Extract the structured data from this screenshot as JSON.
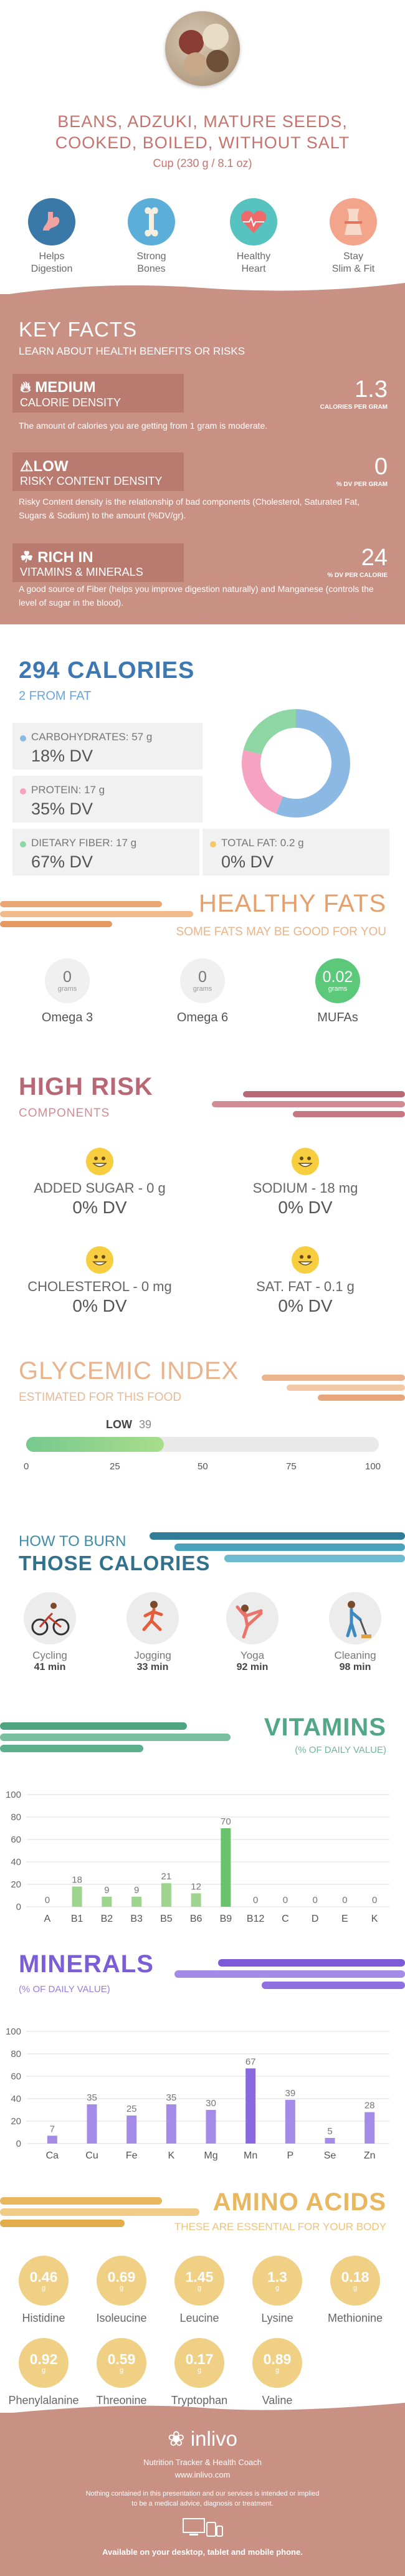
{
  "header": {
    "title_line1": "BEANS, ADZUKI, MATURE SEEDS,",
    "title_line2": "COOKED, BOILED, WITHOUT SALT",
    "serving": "Cup (230 g / 8.1 oz)",
    "benefits": [
      {
        "label1": "Helps",
        "label2": "Digestion",
        "icon": "stomach-icon",
        "color": "#3a78a8"
      },
      {
        "label1": "Strong",
        "label2": "Bones",
        "icon": "bone-icon",
        "color": "#5aaed8"
      },
      {
        "label1": "Healthy",
        "label2": "Heart",
        "icon": "heart-icon",
        "color": "#56c3c0"
      },
      {
        "label1": "Stay",
        "label2": "Slim & Fit",
        "icon": "waist-icon",
        "color": "#f3a58b"
      }
    ]
  },
  "key_facts": {
    "title": "KEY FACTS",
    "subtitle": "LEARN ABOUT HEALTH BENEFITS OR RISKS",
    "items": [
      {
        "level": "MEDIUM",
        "category": "CALORIE DENSITY",
        "icon": "flame-icon",
        "value": "1.3",
        "unit": "CALORIES PER GRAM",
        "desc": "The amount of calories you are getting from 1 gram is moderate."
      },
      {
        "level": "LOW",
        "category": "RISKY CONTENT DENSITY",
        "icon": "warning-icon",
        "value": "0",
        "unit": "% DV PER GRAM",
        "desc": "Risky Content density is the relationship of bad components (Cholesterol, Saturated Fat, Sugars & Sodium) to the amount (%DV/gr)."
      },
      {
        "level": "RICH IN",
        "category": "VITAMINS & MINERALS",
        "icon": "leaf-icon",
        "value": "24",
        "unit": "% DV PER CALORIE",
        "desc": "A good source of Fiber (helps you improve digestion naturally) and Manganese (controls the level of sugar in the blood)."
      }
    ]
  },
  "calories": {
    "title": "294 CALORIES",
    "subtitle": "2 FROM FAT",
    "nutrients": [
      {
        "label": "CARBOHYDRATES: 57 g",
        "dv": "18% DV",
        "color": "#8bb9e3",
        "share": 0.56
      },
      {
        "label": "PROTEIN: 17 g",
        "dv": "35% DV",
        "color": "#f5a3c0",
        "share": 0.23
      },
      {
        "label": "DIETARY FIBER: 17 g",
        "dv": "67% DV",
        "color": "#8fd6a5",
        "share": 0.21
      },
      {
        "label": "TOTAL FAT: 0.2 g",
        "dv": "0% DV",
        "color": "#f4c86a",
        "share": 0.0
      }
    ]
  },
  "healthy_fats": {
    "title": "HEALTHY FATS",
    "subtitle": "SOME FATS MAY BE GOOD FOR YOU",
    "items": [
      {
        "value": "0",
        "unit": "grams",
        "name": "Omega 3",
        "highlight": false
      },
      {
        "value": "0",
        "unit": "grams",
        "name": "Omega 6",
        "highlight": false
      },
      {
        "value": "0.02",
        "unit": "grams",
        "name": "MUFAs",
        "highlight": true
      }
    ]
  },
  "high_risk": {
    "title": "HIGH RISK",
    "subtitle": "COMPONENTS",
    "items": [
      {
        "label": "ADDED SUGAR - 0 g",
        "dv": "0% DV"
      },
      {
        "label": "SODIUM - 18 mg",
        "dv": "0% DV"
      },
      {
        "label": "CHOLESTEROL - 0 mg",
        "dv": "0% DV"
      },
      {
        "label": "SAT. FAT - 0.1 g",
        "dv": "0% DV"
      }
    ]
  },
  "glycemic": {
    "title": "GLYCEMIC INDEX",
    "subtitle": "ESTIMATED FOR THIS FOOD",
    "level": "LOW",
    "value": 39,
    "value_label": "39",
    "ticks": [
      "0",
      "25",
      "50",
      "75",
      "100"
    ]
  },
  "burn": {
    "line1": "HOW TO BURN",
    "line2": "THOSE CALORIES",
    "items": [
      {
        "activity": "Cycling",
        "minutes": "41 min",
        "icon": "cycling-icon"
      },
      {
        "activity": "Jogging",
        "minutes": "33 min",
        "icon": "jogging-icon"
      },
      {
        "activity": "Yoga",
        "minutes": "92 min",
        "icon": "yoga-icon"
      },
      {
        "activity": "Cleaning",
        "minutes": "98 min",
        "icon": "cleaning-icon"
      }
    ]
  },
  "vitamins": {
    "title": "VITAMINS",
    "subtitle": "(% OF DAILY VALUE)"
  },
  "minerals": {
    "title": "MINERALS",
    "subtitle": "(% OF DAILY VALUE)"
  },
  "chart_data": [
    {
      "type": "bar",
      "title": "VITAMINS",
      "subtitle": "(% OF DAILY VALUE)",
      "categories": [
        "A",
        "B1",
        "B2",
        "B3",
        "B5",
        "B6",
        "B9",
        "B12",
        "C",
        "D",
        "E",
        "K"
      ],
      "values": [
        0,
        18,
        9,
        9,
        21,
        12,
        70,
        0,
        0,
        0,
        0,
        0
      ],
      "ylim": [
        0,
        100
      ],
      "yticks": [
        "0",
        "20",
        "40",
        "60",
        "80",
        "100"
      ],
      "color": "#9fd48f",
      "highlight_color": "#6ac26d"
    },
    {
      "type": "bar",
      "title": "MINERALS",
      "subtitle": "(% OF DAILY VALUE)",
      "categories": [
        "Ca",
        "Cu",
        "Fe",
        "K",
        "Mg",
        "Mn",
        "P",
        "Se",
        "Zn"
      ],
      "values": [
        7,
        35,
        25,
        35,
        30,
        67,
        39,
        5,
        28
      ],
      "ylim": [
        0,
        100
      ],
      "yticks": [
        "0",
        "20",
        "40",
        "60",
        "80",
        "100"
      ],
      "color": "#a48be8",
      "highlight_color": "#8a68e0"
    }
  ],
  "amino_acids": {
    "title": "AMINO ACIDS",
    "subtitle": "THESE ARE ESSENTIAL FOR YOUR BODY",
    "items": [
      {
        "value": "0.46",
        "unit": "g",
        "name": "Histidine"
      },
      {
        "value": "0.69",
        "unit": "g",
        "name": "Isoleucine"
      },
      {
        "value": "1.45",
        "unit": "g",
        "name": "Leucine"
      },
      {
        "value": "1.3",
        "unit": "g",
        "name": "Lysine"
      },
      {
        "value": "0.18",
        "unit": "g",
        "name": "Methionine"
      },
      {
        "value": "0.92",
        "unit": "g",
        "name": "Phenylalanine"
      },
      {
        "value": "0.59",
        "unit": "g",
        "name": "Threonine"
      },
      {
        "value": "0.17",
        "unit": "g",
        "name": "Tryptophan"
      },
      {
        "value": "0.89",
        "unit": "g",
        "name": "Valine"
      }
    ]
  },
  "footer": {
    "brand": "inlivo",
    "tagline": "Nutrition Tracker & Health Coach",
    "url": "www.inlivo.com",
    "disclaimer1": "Nothing contained in this presentation and our services is intended or implied",
    "disclaimer2": "to be a medical advice, diagnosis or treatment.",
    "availability": "Available on your desktop, tablet and mobile phone."
  }
}
